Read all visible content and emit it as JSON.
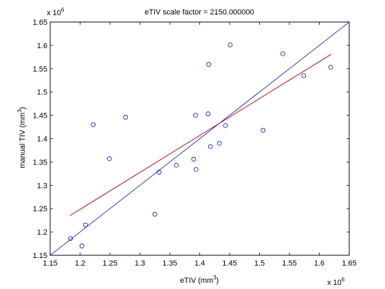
{
  "chart_data": {
    "type": "scatter",
    "title": "eTIV scale factor = 2150.000000",
    "xlabel_base": "eTIV (mm",
    "xlabel_sup": "3",
    "xlabel_end": ")",
    "ylabel_base": "manual TIV (mm",
    "ylabel_sup": "3",
    "ylabel_end": ")",
    "xlim": [
      1150000,
      1650000
    ],
    "ylim": [
      1150000,
      1650000
    ],
    "x_ticks": [
      1.15,
      1.2,
      1.25,
      1.3,
      1.35,
      1.4,
      1.45,
      1.5,
      1.55,
      1.6,
      1.65
    ],
    "y_ticks": [
      1.15,
      1.2,
      1.25,
      1.3,
      1.35,
      1.4,
      1.45,
      1.5,
      1.55,
      1.6,
      1.65
    ],
    "x_tick_labels": [
      "1.15",
      "1.2",
      "1.25",
      "1.3",
      "1.35",
      "1.4",
      "1.45",
      "1.5",
      "1.55",
      "1.6",
      "1.65"
    ],
    "y_tick_labels": [
      "1.15",
      "1.2",
      "1.25",
      "1.3",
      "1.35",
      "1.4",
      "1.45",
      "1.5",
      "1.55",
      "1.6",
      "1.65"
    ],
    "x_multiplier_base": "x 10",
    "x_multiplier_exp": "6",
    "y_multiplier_base": "x 10",
    "y_multiplier_exp": "6",
    "grid": false,
    "marker_color": "#0000ff",
    "identity_line_color": "#0000ff",
    "fit_line_color": "#cc0000",
    "points": [
      {
        "x": 1184000,
        "y": 1186000
      },
      {
        "x": 1203000,
        "y": 1170000
      },
      {
        "x": 1209000,
        "y": 1215000
      },
      {
        "x": 1222000,
        "y": 1430000
      },
      {
        "x": 1249000,
        "y": 1357000
      },
      {
        "x": 1276000,
        "y": 1446000
      },
      {
        "x": 1325000,
        "y": 1238000
      },
      {
        "x": 1332000,
        "y": 1328000
      },
      {
        "x": 1361000,
        "y": 1343000
      },
      {
        "x": 1390000,
        "y": 1356000
      },
      {
        "x": 1393000,
        "y": 1450000
      },
      {
        "x": 1394000,
        "y": 1334000
      },
      {
        "x": 1414000,
        "y": 1453000
      },
      {
        "x": 1415000,
        "y": 1559000
      },
      {
        "x": 1418000,
        "y": 1383000
      },
      {
        "x": 1433000,
        "y": 1390000
      },
      {
        "x": 1443000,
        "y": 1428000
      },
      {
        "x": 1451000,
        "y": 1601000
      },
      {
        "x": 1506000,
        "y": 1418000
      },
      {
        "x": 1539000,
        "y": 1582000
      },
      {
        "x": 1574000,
        "y": 1535000
      },
      {
        "x": 1619000,
        "y": 1553000
      }
    ],
    "identity_line": {
      "x": [
        1150000,
        1650000
      ],
      "y": [
        1150000,
        1650000
      ]
    },
    "fit_line": {
      "x": [
        1183000,
        1620000
      ],
      "y": [
        1235000,
        1581000
      ]
    }
  }
}
